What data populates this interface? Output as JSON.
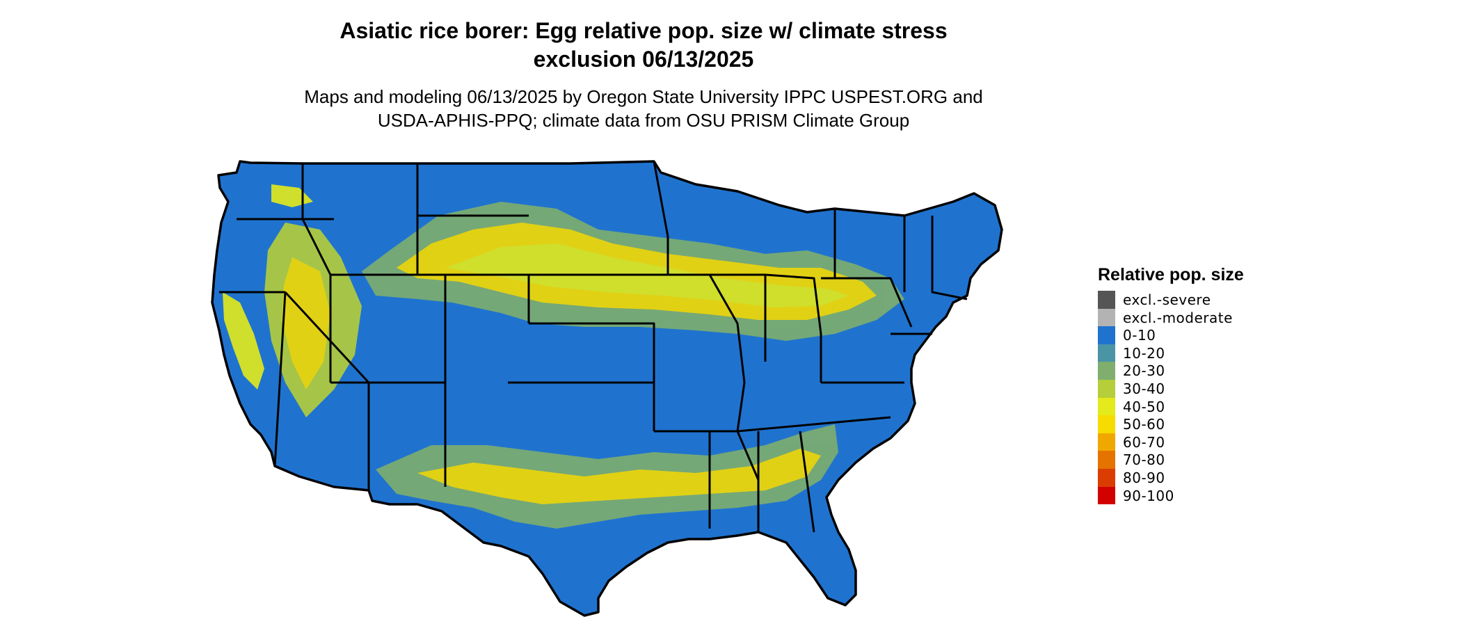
{
  "title": {
    "line1": "Asiatic rice borer: Egg relative pop. size w/ climate stress",
    "line2": "exclusion 06/13/2025"
  },
  "subtitle": {
    "line1": "Maps and modeling 06/13/2025 by Oregon State University IPPC USPEST.ORG and",
    "line2": "USDA-APHIS-PPQ; climate data from OSU PRISM Climate Group"
  },
  "legend": {
    "title": "Relative pop. size",
    "items": [
      {
        "label": "excl.-severe",
        "color": "#555555"
      },
      {
        "label": "excl.-moderate",
        "color": "#b3b3b3"
      },
      {
        "label": "0-10",
        "color": "#1f73cf"
      },
      {
        "label": "10-20",
        "color": "#4a94a6"
      },
      {
        "label": "20-30",
        "color": "#7fae6e"
      },
      {
        "label": "30-40",
        "color": "#b5ce3a"
      },
      {
        "label": "40-50",
        "color": "#e4ea1b"
      },
      {
        "label": "50-60",
        "color": "#f7dc00"
      },
      {
        "label": "60-70",
        "color": "#f0a800"
      },
      {
        "label": "70-80",
        "color": "#e57300"
      },
      {
        "label": "80-90",
        "color": "#db3d00"
      },
      {
        "label": "90-100",
        "color": "#d30000"
      }
    ]
  },
  "map": {
    "region": "Contiguous United States",
    "base_color": "#1f73cf",
    "border_color": "#000000"
  }
}
